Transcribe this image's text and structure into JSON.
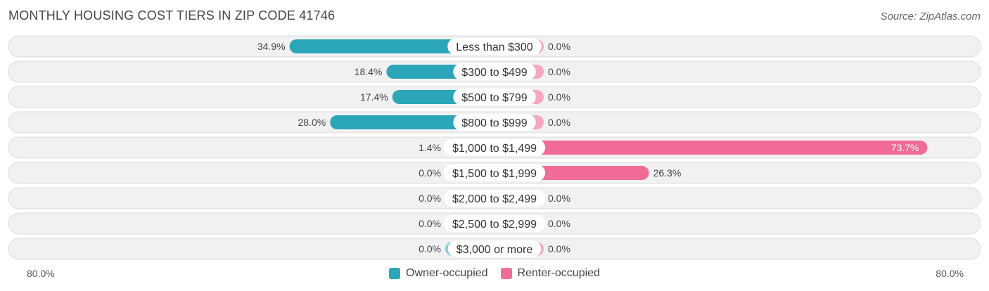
{
  "header": {
    "title": "MONTHLY HOUSING COST TIERS IN ZIP CODE 41746",
    "source": "Source: ZipAtlas.com"
  },
  "colors": {
    "owner": "#2aa6b8",
    "owner_light": "#80cdd8",
    "renter": "#f06b96",
    "renter_light": "#f7a7c1"
  },
  "chart_data": {
    "type": "bar",
    "orientation": "horizontal-diverging",
    "categories": [
      "Less than $300",
      "$300 to $499",
      "$500 to $799",
      "$800 to $999",
      "$1,000 to $1,499",
      "$1,500 to $1,999",
      "$2,000 to $2,499",
      "$2,500 to $2,999",
      "$3,000 or more"
    ],
    "series": [
      {
        "name": "Owner-occupied",
        "values": [
          34.9,
          18.4,
          17.4,
          28.0,
          1.4,
          0.0,
          0.0,
          0.0,
          0.0
        ],
        "labels": [
          "34.9%",
          "18.4%",
          "17.4%",
          "28.0%",
          "1.4%",
          "0.0%",
          "0.0%",
          "0.0%",
          "0.0%"
        ]
      },
      {
        "name": "Renter-occupied",
        "values": [
          0.0,
          0.0,
          0.0,
          0.0,
          73.7,
          26.3,
          0.0,
          0.0,
          0.0
        ],
        "labels": [
          "0.0%",
          "0.0%",
          "0.0%",
          "0.0%",
          "73.7%",
          "26.3%",
          "0.0%",
          "0.0%",
          "0.0%"
        ]
      }
    ],
    "xlim": [
      -80,
      80
    ],
    "axis_left_label": "80.0%",
    "axis_right_label": "80.0%",
    "legend_position": "bottom-center"
  }
}
